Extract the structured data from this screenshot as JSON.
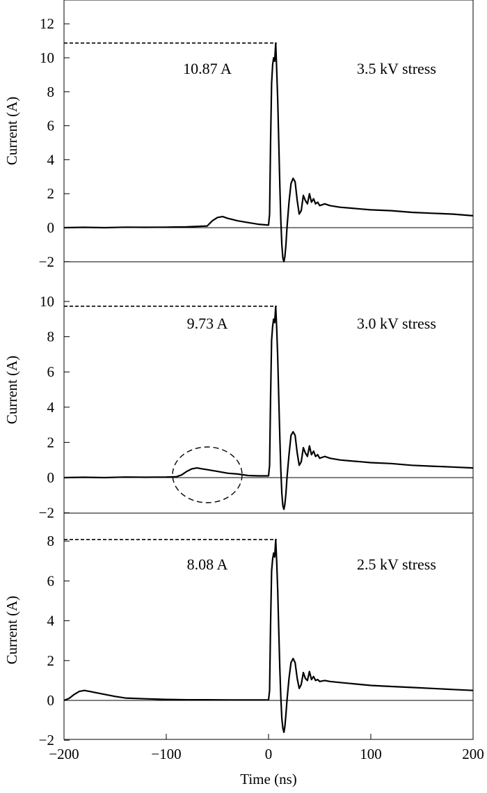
{
  "figure": {
    "xlabel": "Time (ns)",
    "x_ticks": [
      "−200",
      "−100",
      "0",
      "100",
      "200"
    ]
  },
  "chart_data": [
    {
      "type": "line",
      "title": "",
      "xlabel": "",
      "ylabel": "Current (A)",
      "xlim": [
        -200,
        200
      ],
      "ylim": [
        -2,
        13
      ],
      "y_ticks": [
        -2,
        0,
        2,
        4,
        6,
        8,
        10,
        12
      ],
      "y_tick_labels": [
        "−2",
        "0",
        "2",
        "4",
        "6",
        "8",
        "10",
        "12"
      ],
      "grid": false,
      "condition_label": "3.5 kV stress",
      "peak_label": "10.87 A",
      "peak_value": 10.87,
      "series": [
        {
          "x": [
            -200,
            -180,
            -160,
            -140,
            -120,
            -100,
            -80,
            -60,
            -55,
            -50,
            -45,
            -40,
            -30,
            -20,
            -10,
            0,
            1,
            2,
            3,
            4,
            5,
            6,
            7,
            8,
            9,
            10,
            11,
            12,
            13,
            14,
            15,
            16,
            17,
            18,
            20,
            22,
            24,
            26,
            28,
            30,
            32,
            34,
            36,
            38,
            40,
            42,
            44,
            46,
            48,
            50,
            55,
            60,
            70,
            80,
            90,
            100,
            120,
            140,
            160,
            180,
            200
          ],
          "y": [
            0.0,
            0.02,
            0.0,
            0.03,
            0.02,
            0.03,
            0.05,
            0.1,
            0.4,
            0.6,
            0.65,
            0.55,
            0.4,
            0.3,
            0.2,
            0.15,
            0.8,
            5.0,
            8.5,
            9.6,
            10.0,
            9.8,
            10.87,
            9.2,
            7.5,
            5.0,
            2.5,
            0.5,
            -1.0,
            -1.8,
            -2.0,
            -1.7,
            -1.0,
            0.0,
            1.5,
            2.6,
            2.9,
            2.7,
            1.6,
            0.8,
            1.0,
            1.9,
            1.6,
            1.4,
            2.0,
            1.5,
            1.7,
            1.4,
            1.5,
            1.3,
            1.4,
            1.3,
            1.2,
            1.15,
            1.1,
            1.05,
            1.0,
            0.9,
            0.85,
            0.8,
            0.7
          ]
        }
      ]
    },
    {
      "type": "line",
      "title": "",
      "xlabel": "",
      "ylabel": "Current (A)",
      "xlim": [
        -200,
        200
      ],
      "ylim": [
        -2,
        11
      ],
      "y_ticks": [
        -2,
        0,
        2,
        4,
        6,
        8,
        10
      ],
      "y_tick_labels": [
        "−2",
        "0",
        "2",
        "4",
        "6",
        "8",
        "10"
      ],
      "grid": false,
      "condition_label": "3.0 kV stress",
      "peak_label": "9.73 A",
      "peak_value": 9.73,
      "series": [
        {
          "x": [
            -200,
            -180,
            -160,
            -140,
            -120,
            -100,
            -90,
            -85,
            -80,
            -75,
            -70,
            -65,
            -60,
            -50,
            -40,
            -30,
            -20,
            -10,
            0,
            1,
            2,
            3,
            4,
            5,
            6,
            7,
            8,
            9,
            10,
            11,
            12,
            13,
            14,
            15,
            16,
            17,
            18,
            20,
            22,
            24,
            26,
            28,
            30,
            32,
            34,
            36,
            38,
            40,
            42,
            44,
            46,
            48,
            50,
            55,
            60,
            70,
            80,
            90,
            100,
            120,
            140,
            160,
            180,
            200
          ],
          "y": [
            0.0,
            0.02,
            0.0,
            0.03,
            0.02,
            0.03,
            0.05,
            0.15,
            0.35,
            0.5,
            0.55,
            0.5,
            0.45,
            0.35,
            0.25,
            0.2,
            0.12,
            0.1,
            0.1,
            0.7,
            4.5,
            7.8,
            8.6,
            9.0,
            8.8,
            9.73,
            8.4,
            6.8,
            4.5,
            2.3,
            0.5,
            -0.9,
            -1.6,
            -1.8,
            -1.5,
            -0.9,
            0.0,
            1.3,
            2.4,
            2.6,
            2.4,
            1.4,
            0.7,
            0.9,
            1.7,
            1.4,
            1.2,
            1.8,
            1.3,
            1.5,
            1.2,
            1.3,
            1.1,
            1.2,
            1.1,
            1.0,
            0.95,
            0.9,
            0.85,
            0.8,
            0.7,
            0.65,
            0.6,
            0.55
          ]
        }
      ]
    },
    {
      "type": "line",
      "title": "",
      "xlabel": "Time (ns)",
      "ylabel": "Current (A)",
      "xlim": [
        -200,
        200
      ],
      "ylim": [
        -2,
        9
      ],
      "y_ticks": [
        -2,
        0,
        2,
        4,
        6,
        8
      ],
      "y_tick_labels": [
        "−2",
        "0",
        "2",
        "4",
        "6",
        "8"
      ],
      "x_ticks": [
        -200,
        -100,
        0,
        100,
        200
      ],
      "grid": false,
      "condition_label": "2.5 kV stress",
      "peak_label": "8.08 A",
      "peak_value": 8.08,
      "series": [
        {
          "x": [
            -200,
            -195,
            -190,
            -185,
            -180,
            -175,
            -170,
            -160,
            -150,
            -140,
            -120,
            -100,
            -80,
            -60,
            -40,
            -20,
            -10,
            0,
            1,
            2,
            3,
            4,
            5,
            6,
            7,
            8,
            9,
            10,
            11,
            12,
            13,
            14,
            15,
            16,
            17,
            18,
            20,
            22,
            24,
            26,
            28,
            30,
            32,
            34,
            36,
            38,
            40,
            42,
            44,
            46,
            48,
            50,
            55,
            60,
            70,
            80,
            90,
            100,
            120,
            140,
            160,
            180,
            200
          ],
          "y": [
            0.0,
            0.1,
            0.3,
            0.45,
            0.5,
            0.45,
            0.4,
            0.3,
            0.2,
            0.12,
            0.08,
            0.05,
            0.03,
            0.03,
            0.02,
            0.02,
            0.02,
            0.02,
            0.5,
            3.8,
            6.5,
            7.1,
            7.4,
            7.2,
            8.08,
            6.9,
            5.5,
            3.5,
            1.6,
            0.2,
            -0.9,
            -1.4,
            -1.6,
            -1.3,
            -0.7,
            0.0,
            1.1,
            1.9,
            2.1,
            1.9,
            1.1,
            0.6,
            0.8,
            1.4,
            1.1,
            1.0,
            1.45,
            1.05,
            1.2,
            1.0,
            1.05,
            0.95,
            1.0,
            0.95,
            0.9,
            0.85,
            0.8,
            0.75,
            0.7,
            0.65,
            0.6,
            0.55,
            0.5
          ]
        }
      ]
    }
  ]
}
